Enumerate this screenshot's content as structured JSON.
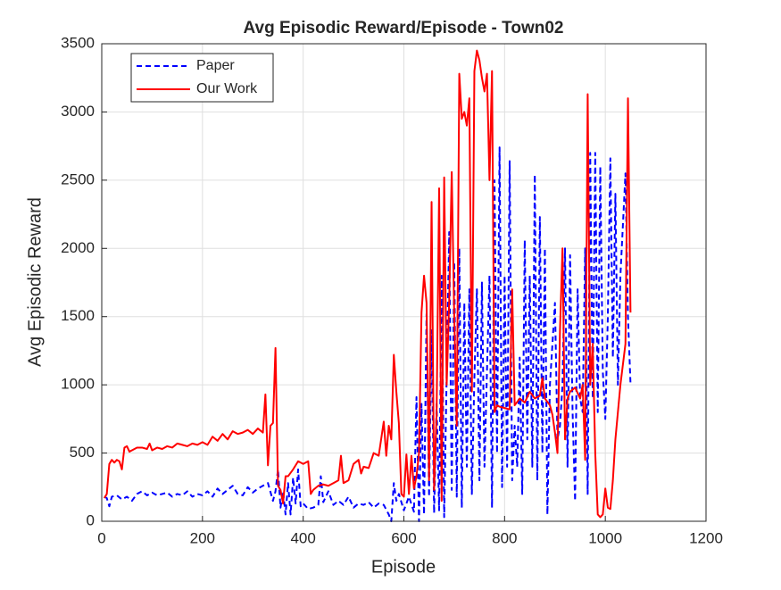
{
  "chart_data": {
    "type": "line",
    "title": "Avg Episodic Reward/Episode - Town02",
    "x_label": "Episode",
    "y_label": "Avg Episodic Reward",
    "xlim": [
      0,
      1200
    ],
    "xticks": [
      0,
      200,
      400,
      600,
      800,
      1000,
      1200
    ],
    "ylim": [
      0,
      3500
    ],
    "yticks": [
      0,
      500,
      1000,
      1500,
      2000,
      2500,
      3000,
      3500
    ],
    "grid": true,
    "legend": "upper-left",
    "series": [
      {
        "name": "Paper",
        "color": "#0000ff",
        "dashed": true,
        "x": [
          5,
          10,
          15,
          20,
          30,
          40,
          50,
          60,
          70,
          80,
          90,
          100,
          110,
          120,
          130,
          140,
          150,
          160,
          170,
          180,
          190,
          200,
          210,
          220,
          230,
          240,
          250,
          260,
          270,
          280,
          290,
          300,
          310,
          320,
          330,
          340,
          345,
          350,
          355,
          360,
          365,
          370,
          375,
          380,
          385,
          390,
          395,
          400,
          410,
          420,
          430,
          435,
          440,
          450,
          460,
          470,
          480,
          490,
          500,
          510,
          520,
          530,
          540,
          550,
          560,
          570,
          575,
          580,
          585,
          590,
          600,
          610,
          620,
          625,
          630,
          635,
          640,
          645,
          650,
          655,
          660,
          665,
          670,
          675,
          680,
          690,
          695,
          700,
          705,
          710,
          715,
          720,
          725,
          730,
          735,
          740,
          745,
          750,
          755,
          760,
          770,
          775,
          780,
          785,
          790,
          795,
          800,
          805,
          810,
          815,
          820,
          825,
          830,
          835,
          840,
          845,
          850,
          855,
          860,
          865,
          870,
          875,
          880,
          885,
          890,
          900,
          905,
          910,
          915,
          920,
          925,
          930,
          935,
          940,
          945,
          950,
          955,
          960,
          965,
          970,
          975,
          980,
          985,
          990,
          995,
          1000,
          1005,
          1010,
          1015,
          1020,
          1025,
          1030,
          1040,
          1045,
          1050
        ],
        "values": [
          180,
          170,
          110,
          180,
          190,
          160,
          180,
          150,
          200,
          220,
          190,
          210,
          190,
          200,
          210,
          180,
          200,
          190,
          220,
          180,
          200,
          190,
          220,
          180,
          240,
          200,
          230,
          260,
          200,
          190,
          250,
          210,
          240,
          260,
          280,
          150,
          220,
          380,
          100,
          220,
          50,
          280,
          50,
          320,
          130,
          380,
          110,
          130,
          90,
          100,
          120,
          330,
          140,
          220,
          120,
          150,
          120,
          180,
          100,
          130,
          120,
          140,
          100,
          130,
          120,
          50,
          0,
          280,
          150,
          200,
          80,
          180,
          70,
          910,
          0,
          860,
          50,
          1520,
          180,
          1400,
          60,
          860,
          80,
          1800,
          30,
          2120,
          230,
          1900,
          180,
          2000,
          100,
          1600,
          400,
          1700,
          200,
          1050,
          1700,
          300,
          1750,
          400,
          1800,
          100,
          2500,
          500,
          2740,
          250,
          1800,
          400,
          2640,
          300,
          700,
          400,
          1200,
          200,
          2060,
          600,
          1800,
          400,
          2540,
          300,
          2230,
          500,
          2000,
          50,
          1000,
          1600,
          600,
          700,
          1000,
          2000,
          400,
          1950,
          800,
          150,
          1700,
          900,
          800,
          2000,
          200,
          2700,
          900,
          2700,
          800,
          2600,
          1100,
          750,
          1500,
          2660,
          1200,
          2400,
          1000,
          1800,
          2550,
          1500,
          1010
        ]
      },
      {
        "name": "Our Work",
        "color": "#ff0000",
        "dashed": false,
        "x": [
          5,
          10,
          15,
          20,
          25,
          30,
          35,
          40,
          45,
          50,
          55,
          60,
          70,
          80,
          90,
          95,
          100,
          110,
          120,
          130,
          140,
          150,
          160,
          170,
          180,
          190,
          200,
          210,
          220,
          230,
          240,
          250,
          260,
          270,
          280,
          290,
          300,
          310,
          320,
          325,
          330,
          335,
          340,
          345,
          350,
          355,
          360,
          365,
          370,
          380,
          390,
          400,
          410,
          415,
          420,
          430,
          440,
          450,
          460,
          470,
          475,
          480,
          490,
          500,
          510,
          515,
          520,
          530,
          540,
          550,
          560,
          565,
          570,
          575,
          580,
          585,
          590,
          595,
          600,
          605,
          610,
          615,
          620,
          625,
          630,
          635,
          640,
          645,
          650,
          655,
          660,
          665,
          670,
          675,
          680,
          685,
          690,
          695,
          700,
          705,
          710,
          715,
          720,
          725,
          730,
          735,
          740,
          745,
          750,
          755,
          760,
          765,
          770,
          775,
          780,
          785,
          790,
          800,
          810,
          815,
          820,
          830,
          840,
          850,
          860,
          870,
          875,
          880,
          890,
          895,
          900,
          905,
          910,
          915,
          920,
          925,
          930,
          940,
          950,
          955,
          960,
          965,
          970,
          975,
          980,
          985,
          990,
          995,
          1000,
          1005,
          1010,
          1015,
          1020,
          1030,
          1040,
          1045,
          1050
        ],
        "values": [
          170,
          200,
          420,
          450,
          430,
          450,
          440,
          380,
          540,
          550,
          510,
          520,
          540,
          540,
          530,
          570,
          520,
          540,
          530,
          550,
          540,
          570,
          560,
          550,
          570,
          560,
          580,
          560,
          620,
          590,
          640,
          600,
          660,
          640,
          650,
          670,
          640,
          680,
          650,
          930,
          410,
          700,
          720,
          1270,
          260,
          230,
          130,
          330,
          330,
          380,
          440,
          420,
          440,
          200,
          230,
          260,
          270,
          260,
          280,
          300,
          480,
          280,
          300,
          420,
          450,
          350,
          400,
          390,
          500,
          480,
          730,
          480,
          700,
          600,
          1220,
          950,
          720,
          200,
          180,
          490,
          200,
          480,
          240,
          330,
          500,
          1530,
          1800,
          1600,
          300,
          2340,
          230,
          800,
          2440,
          150,
          2520,
          1000,
          1620,
          2560,
          1500,
          700,
          3280,
          2950,
          3000,
          2900,
          3100,
          950,
          3300,
          3450,
          3380,
          3250,
          3150,
          3280,
          2500,
          3300,
          800,
          850,
          840,
          830,
          820,
          1700,
          850,
          900,
          870,
          950,
          900,
          920,
          1050,
          900,
          850,
          780,
          650,
          500,
          1400,
          2000,
          600,
          900,
          950,
          980,
          900,
          1000,
          450,
          3130,
          1000,
          1300,
          500,
          50,
          30,
          50,
          240,
          100,
          90,
          300,
          600,
          1000,
          1300,
          3100,
          1530
        ]
      }
    ]
  }
}
